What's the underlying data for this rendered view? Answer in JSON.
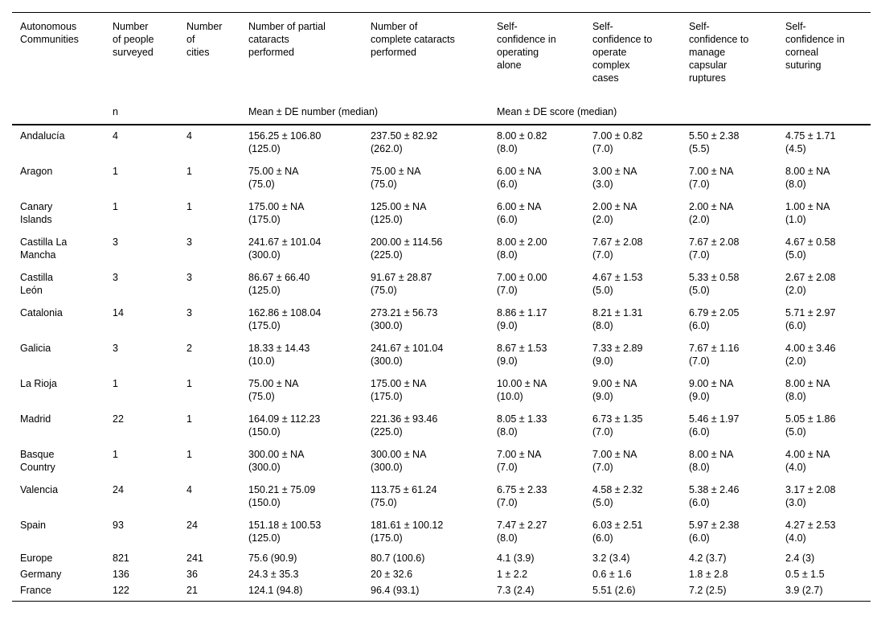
{
  "table": {
    "columns": [
      "Autonomous\nCommunities",
      "Number\nof people\nsurveyed",
      "Number\nof\ncities",
      "Number of partial\ncataracts\nperformed",
      "Number of\ncomplete cataracts\nperformed",
      "Self-\nconfidence in\noperating\nalone",
      "Self-\nconfidence to\noperate\ncomplex\ncases",
      "Self-\nconfidence to\nmanage\ncapsular\nruptures",
      "Self-\nconfidence in\ncorneal\nsuturing"
    ],
    "subheader": {
      "n_label": "n",
      "number_label": "Mean ± DE number (median)",
      "score_label": "Mean ± DE score (median)"
    },
    "rows": [
      {
        "community": "Andalucía",
        "values": [
          "4",
          "4",
          "156.25 ± 106.80\n(125.0)",
          "237.50 ± 82.92\n(262.0)",
          "8.00 ± 0.82\n(8.0)",
          "7.00 ± 0.82\n(7.0)",
          "5.50 ± 2.38\n(5.5)",
          "4.75 ± 1.71\n(4.5)"
        ]
      },
      {
        "community": "Aragon",
        "values": [
          "1",
          "1",
          "75.00 ± NA\n(75.0)",
          "75.00 ± NA\n(75.0)",
          "6.00 ± NA\n(6.0)",
          "3.00 ± NA\n(3.0)",
          "7.00 ± NA\n(7.0)",
          "8.00 ± NA\n(8.0)"
        ]
      },
      {
        "community": "Canary\nIslands",
        "values": [
          "1",
          "1",
          "175.00 ± NA\n(175.0)",
          "125.00 ± NA\n(125.0)",
          "6.00 ± NA\n(6.0)",
          "2.00 ± NA\n(2.0)",
          "2.00 ± NA\n(2.0)",
          "1.00 ± NA\n(1.0)"
        ]
      },
      {
        "community": "Castilla La\nMancha",
        "values": [
          "3",
          "3",
          "241.67 ± 101.04\n(300.0)",
          "200.00 ± 114.56\n(225.0)",
          "8.00 ± 2.00\n(8.0)",
          "7.67 ± 2.08\n(7.0)",
          "7.67 ± 2.08\n(7.0)",
          "4.67 ± 0.58\n(5.0)"
        ]
      },
      {
        "community": "Castilla\nLeón",
        "values": [
          "3",
          "3",
          "86.67 ± 66.40\n(125.0)",
          "91.67 ± 28.87\n(75.0)",
          "7.00 ± 0.00\n(7.0)",
          "4.67 ± 1.53\n(5.0)",
          "5.33 ± 0.58\n(5.0)",
          "2.67 ± 2.08\n(2.0)"
        ]
      },
      {
        "community": "Catalonia",
        "values": [
          "14",
          "3",
          "162.86 ± 108.04\n(175.0)",
          "273.21 ± 56.73\n(300.0)",
          "8.86 ± 1.17\n(9.0)",
          "8.21 ± 1.31\n(8.0)",
          "6.79 ± 2.05\n(6.0)",
          "5.71 ± 2.97\n(6.0)"
        ]
      },
      {
        "community": "Galicia",
        "values": [
          "3",
          "2",
          "18.33 ± 14.43\n(10.0)",
          "241.67 ± 101.04\n(300.0)",
          "8.67 ± 1.53\n(9.0)",
          "7.33 ± 2.89\n(9.0)",
          "7.67 ± 1.16\n(7.0)",
          "4.00 ± 3.46\n(2.0)"
        ]
      },
      {
        "community": "La Rioja",
        "values": [
          "1",
          "1",
          "75.00 ± NA\n(75.0)",
          "175.00 ± NA\n(175.0)",
          "10.00 ± NA\n(10.0)",
          "9.00 ± NA\n(9.0)",
          "9.00 ± NA\n(9.0)",
          "8.00 ± NA\n(8.0)"
        ]
      },
      {
        "community": "Madrid",
        "values": [
          "22",
          "1",
          "164.09 ± 112.23\n(150.0)",
          "221.36 ± 93.46\n(225.0)",
          "8.05 ± 1.33\n(8.0)",
          "6.73 ± 1.35\n(7.0)",
          "5.46 ± 1.97\n(6.0)",
          "5.05 ± 1.86\n(5.0)"
        ]
      },
      {
        "community": "Basque\nCountry",
        "values": [
          "1",
          "1",
          "300.00 ± NA\n(300.0)",
          "300.00 ± NA\n(300.0)",
          "7.00 ± NA\n(7.0)",
          "7.00 ± NA\n(7.0)",
          "8.00 ± NA\n(8.0)",
          "4.00 ± NA\n(4.0)"
        ]
      },
      {
        "community": "Valencia",
        "values": [
          "24",
          "4",
          "150.21 ± 75.09\n(150.0)",
          "113.75 ± 61.24\n(75.0)",
          "6.75 ± 2.33\n(7.0)",
          "4.58 ± 2.32\n(5.0)",
          "5.38 ± 2.46\n(6.0)",
          "3.17 ± 2.08\n(3.0)"
        ]
      },
      {
        "community": "Spain",
        "values": [
          "93",
          "24",
          "151.18 ± 100.53\n(125.0)",
          "181.61 ± 100.12\n(175.0)",
          "7.47 ± 2.27\n(8.0)",
          "6.03 ± 2.51\n(6.0)",
          "5.97 ± 2.38\n(6.0)",
          "4.27 ± 2.53\n(4.0)"
        ]
      },
      {
        "community": "Europe",
        "values": [
          "821",
          "241",
          "75.6 (90.9)",
          "80.7 (100.6)",
          "4.1 (3.9)",
          "3.2 (3.4)",
          "4.2 (3.7)",
          "2.4 (3)"
        ]
      },
      {
        "community": "Germany",
        "values": [
          "136",
          "36",
          "24.3 ± 35.3",
          "20 ± 32.6",
          "1 ± 2.2",
          "0.6 ± 1.6",
          "1.8 ± 2.8",
          "0.5 ± 1.5"
        ]
      },
      {
        "community": "France",
        "values": [
          "122",
          "21",
          "124.1 (94.8)",
          "96.4 (93.1)",
          "7.3 (2.4)",
          "5.51 (2.6)",
          "7.2 (2.5)",
          "3.9 (2.7)"
        ]
      }
    ]
  }
}
